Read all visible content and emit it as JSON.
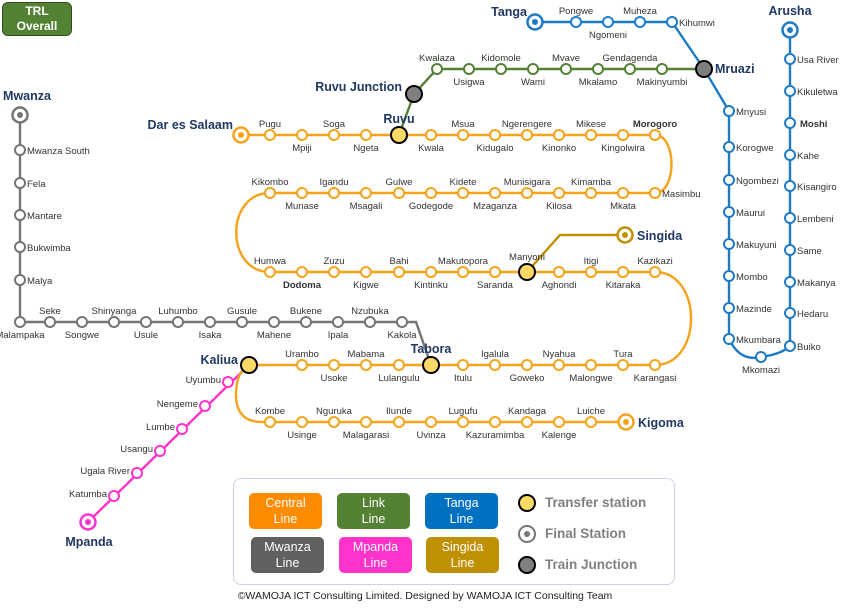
{
  "badge": {
    "line1": "TRL",
    "line2": "Overall"
  },
  "colors": {
    "central": "#f7a21b",
    "link": "#548235",
    "tanga": "#1f7ac4",
    "mwanza": "#757575",
    "mpanda": "#ff33cc",
    "singida": "#bf9000",
    "transfer": "#ffd966",
    "junction": "#7f7f7f",
    "major_label": "#1f3864",
    "junction_label": "#8497b0",
    "city_label": "#c55a11",
    "moshi_label": "#2e75b6"
  },
  "lines": {
    "central": {
      "name": "Central Line",
      "stations": [
        {
          "name": "Dar es Salaam",
          "type": "final"
        },
        {
          "name": "Pugu"
        },
        {
          "name": "Mpiji"
        },
        {
          "name": "Soga"
        },
        {
          "name": "Ngeta"
        },
        {
          "name": "Ruvu",
          "type": "transfer"
        },
        {
          "name": "Kwala"
        },
        {
          "name": "Msua"
        },
        {
          "name": "Kidugalo"
        },
        {
          "name": "Ngerengere"
        },
        {
          "name": "Kinonko"
        },
        {
          "name": "Mikese"
        },
        {
          "name": "Kingolwira"
        },
        {
          "name": "Morogoro"
        },
        {
          "name": "Masimbu"
        },
        {
          "name": "Mkata"
        },
        {
          "name": "Kimamba"
        },
        {
          "name": "Kilosa"
        },
        {
          "name": "Munisigara"
        },
        {
          "name": "Mzaganza"
        },
        {
          "name": "Kidete"
        },
        {
          "name": "Godegode"
        },
        {
          "name": "Gulwe"
        },
        {
          "name": "Msagali"
        },
        {
          "name": "Igandu"
        },
        {
          "name": "Munase"
        },
        {
          "name": "Kikombo"
        },
        {
          "name": "Humwa"
        },
        {
          "name": "Dodoma"
        },
        {
          "name": "Zuzu"
        },
        {
          "name": "Kigwe"
        },
        {
          "name": "Bahi"
        },
        {
          "name": "Kintinku"
        },
        {
          "name": "Makutopora"
        },
        {
          "name": "Saranda"
        },
        {
          "name": "Manyoni",
          "type": "transfer"
        },
        {
          "name": "Aghondi"
        },
        {
          "name": "Itigi"
        },
        {
          "name": "Kitaraka"
        },
        {
          "name": "Kazikazi"
        },
        {
          "name": "Karangasi"
        },
        {
          "name": "Tura"
        },
        {
          "name": "Malongwe"
        },
        {
          "name": "Nyahua"
        },
        {
          "name": "Goweko"
        },
        {
          "name": "Igalula"
        },
        {
          "name": "Itulu"
        },
        {
          "name": "Tabora",
          "type": "transfer"
        },
        {
          "name": "Lulangulu"
        },
        {
          "name": "Mabama"
        },
        {
          "name": "Usoke"
        },
        {
          "name": "Urambo"
        },
        {
          "name": "Kaliua",
          "type": "transfer"
        },
        {
          "name": "Kombe"
        },
        {
          "name": "Usinge"
        },
        {
          "name": "Nguruka"
        },
        {
          "name": "Malagarasi"
        },
        {
          "name": "Ilunde"
        },
        {
          "name": "Uvinza"
        },
        {
          "name": "Lugufu"
        },
        {
          "name": "Kazuramimba"
        },
        {
          "name": "Kandaga"
        },
        {
          "name": "Kalenge"
        },
        {
          "name": "Luiche"
        },
        {
          "name": "Kigoma",
          "type": "final"
        }
      ]
    },
    "link": {
      "name": "Link Line",
      "stations": [
        {
          "name": "Ruvu Junction",
          "type": "junction"
        },
        {
          "name": "Kwalaza"
        },
        {
          "name": "Usigwa"
        },
        {
          "name": "Kidomole"
        },
        {
          "name": "Wami"
        },
        {
          "name": "Mvave"
        },
        {
          "name": "Mkalamo"
        },
        {
          "name": "Gendagenda"
        },
        {
          "name": "Makinyumbi"
        },
        {
          "name": "Mruazi",
          "type": "junction"
        }
      ]
    },
    "tanga": {
      "name": "Tanga Line",
      "stations": [
        {
          "name": "Tanga",
          "type": "final"
        },
        {
          "name": "Pongwe"
        },
        {
          "name": "Ngomeni"
        },
        {
          "name": "Muheza"
        },
        {
          "name": "Kihumwi"
        },
        {
          "name": "Mnyusi"
        },
        {
          "name": "Korogwe"
        },
        {
          "name": "Ngombezi"
        },
        {
          "name": "Maurui"
        },
        {
          "name": "Makuyuni"
        },
        {
          "name": "Mombo"
        },
        {
          "name": "Mazinde"
        },
        {
          "name": "Mkumbara"
        },
        {
          "name": "Mkomazi"
        },
        {
          "name": "Buiko"
        },
        {
          "name": "Hedaru"
        },
        {
          "name": "Makanya"
        },
        {
          "name": "Same"
        },
        {
          "name": "Lembeni"
        },
        {
          "name": "Kisangiro"
        },
        {
          "name": "Kahe"
        },
        {
          "name": "Moshi"
        },
        {
          "name": "Kikuletwa"
        },
        {
          "name": "Usa River"
        },
        {
          "name": "Arusha",
          "type": "final"
        }
      ]
    },
    "mwanza": {
      "name": "Mwanza Line",
      "stations": [
        {
          "name": "Mwanza",
          "type": "final"
        },
        {
          "name": "Mwanza South"
        },
        {
          "name": "Fela"
        },
        {
          "name": "Mantare"
        },
        {
          "name": "Bukwimba"
        },
        {
          "name": "Malya"
        },
        {
          "name": "Malampaka"
        },
        {
          "name": "Seke"
        },
        {
          "name": "Songwe"
        },
        {
          "name": "Shinyanga"
        },
        {
          "name": "Usule"
        },
        {
          "name": "Luhumbo"
        },
        {
          "name": "Isaka"
        },
        {
          "name": "Gusule"
        },
        {
          "name": "Mahene"
        },
        {
          "name": "Bukene"
        },
        {
          "name": "Ipala"
        },
        {
          "name": "Nzubuka"
        },
        {
          "name": "Kakola"
        }
      ]
    },
    "mpanda": {
      "name": "Mpanda Line",
      "stations": [
        {
          "name": "Uyumbu"
        },
        {
          "name": "Nengeme"
        },
        {
          "name": "Lumbe"
        },
        {
          "name": "Usangu"
        },
        {
          "name": "Ugala River"
        },
        {
          "name": "Katumba"
        },
        {
          "name": "Mpanda",
          "type": "final"
        }
      ]
    },
    "singida": {
      "name": "Singida Line",
      "stations": [
        {
          "name": "Singida",
          "type": "final"
        }
      ]
    }
  },
  "legend": {
    "lines": [
      {
        "line1": "Central",
        "line2": "Line",
        "color": "#ff8c00"
      },
      {
        "line1": "Link",
        "line2": "Line",
        "color": "#548235"
      },
      {
        "line1": "Tanga",
        "line2": "Line",
        "color": "#0070c0"
      },
      {
        "line1": "Mwanza",
        "line2": "Line",
        "color": "#606060"
      },
      {
        "line1": "Mpanda",
        "line2": "Line",
        "color": "#ff33cc"
      },
      {
        "line1": "Singida",
        "line2": "Line",
        "color": "#bf9000"
      }
    ],
    "symbols": {
      "transfer": "Transfer station",
      "final": "Final Station",
      "junction": "Train Junction"
    }
  },
  "footer": "©WAMOJA ICT Consulting Limited. Designed by WAMOJA ICT Consulting Team"
}
